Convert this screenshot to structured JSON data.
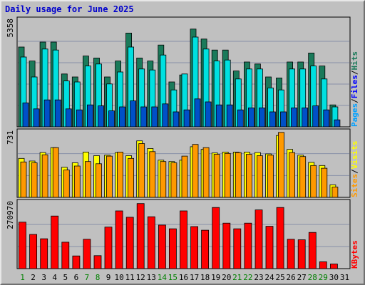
{
  "chart_data": {
    "type": "bar",
    "title": "Daily usage for June 2025",
    "categories": [
      "1",
      "2",
      "3",
      "4",
      "5",
      "6",
      "7",
      "8",
      "9",
      "10",
      "11",
      "12",
      "13",
      "14",
      "15",
      "16",
      "17",
      "18",
      "19",
      "20",
      "21",
      "22",
      "23",
      "24",
      "25",
      "26",
      "27",
      "28",
      "29",
      "30",
      "31"
    ],
    "weekend_days": [
      "1",
      "7",
      "8",
      "14",
      "15",
      "21",
      "22",
      "28",
      "29"
    ],
    "panels": [
      {
        "name": "hits-files-pages",
        "max_label": "5358",
        "ylim": [
          0,
          5358
        ],
        "legend": [
          "Pages",
          "Files",
          "Hits"
        ],
        "series": [
          {
            "name": "Hits",
            "color": "#1a7a5a",
            "values": [
              4000,
              3300,
              4250,
              4250,
              2650,
              2500,
              3550,
              3450,
              2500,
              3300,
              4700,
              3450,
              3300,
              4100,
              2250,
              2600,
              4900,
              4400,
              3850,
              3850,
              2800,
              3250,
              3150,
              2500,
              2450,
              3250,
              3250,
              3700,
              3050,
              1100,
              0
            ]
          },
          {
            "name": "Files",
            "color": "#00e0e0",
            "values": [
              3500,
              2500,
              3900,
              3850,
              2300,
              2250,
              3050,
              3150,
              2150,
              2750,
              4000,
              2900,
              2850,
              3600,
              1850,
              2650,
              4500,
              3900,
              3300,
              3350,
              2400,
              2900,
              2900,
              1950,
              1850,
              2900,
              2900,
              3050,
              2400,
              1000,
              0
            ]
          },
          {
            "name": "Pages",
            "color": "#0050c8",
            "values": [
              1200,
              900,
              1350,
              1350,
              900,
              850,
              1100,
              1050,
              800,
              1000,
              1300,
              1000,
              1000,
              1150,
              750,
              850,
              1400,
              1250,
              1100,
              1100,
              850,
              950,
              950,
              750,
              750,
              950,
              950,
              1050,
              850,
              350,
              0
            ]
          }
        ]
      },
      {
        "name": "visits-sites",
        "max_label": "731",
        "ylim": [
          0,
          731
        ],
        "legend": [
          "Sites",
          "Visits"
        ],
        "series": [
          {
            "name": "Visits",
            "color": "#ffff00",
            "values": [
              435,
              405,
              500,
              555,
              335,
              385,
              505,
              465,
              470,
              500,
              465,
              630,
              545,
              415,
              400,
              415,
              565,
              535,
              495,
              505,
              505,
              505,
              500,
              485,
              690,
              535,
              470,
              390,
              355,
              140,
              0
            ]
          },
          {
            "name": "Sites",
            "color": "#ff9900",
            "values": [
              395,
              385,
              475,
              555,
              305,
              350,
              400,
              375,
              460,
              505,
              435,
              600,
              510,
              400,
              385,
              460,
              590,
              555,
              480,
              490,
              500,
              480,
              465,
              470,
              725,
              500,
              455,
              355,
              325,
              115,
              0
            ]
          }
        ]
      },
      {
        "name": "kbytes",
        "max_label": "270970",
        "ylim": [
          0,
          270970
        ],
        "legend": [
          "KBytes"
        ],
        "series": [
          {
            "name": "KBytes",
            "color": "#ff0000",
            "values": [
              190000,
              140000,
              122000,
              215000,
              108000,
              52000,
              120000,
              53000,
              170000,
              236000,
              210000,
              266000,
              212000,
              178000,
              163000,
              236000,
              172000,
              157000,
              250000,
              186000,
              163000,
              186000,
              240000,
              173000,
              250000,
              120000,
              118000,
              148000,
              28000,
              19000,
              0
            ]
          }
        ]
      }
    ]
  }
}
